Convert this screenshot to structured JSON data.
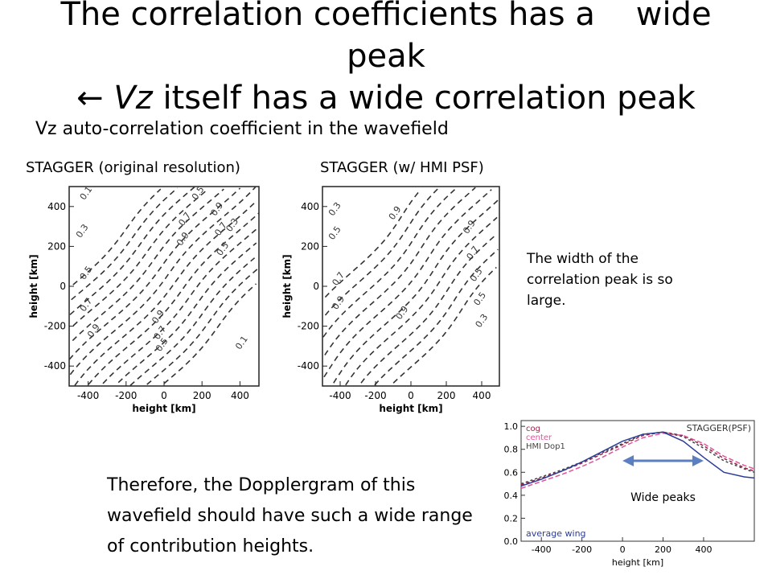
{
  "slide": {
    "title_line1": "The correlation coefficients has a    wide",
    "title_line2": "peak",
    "title_arrow": "←",
    "title_line3_italic": "Vz",
    "title_line3_rest": "itself has a wide correlation peak",
    "subtitle": "Vz auto-correlation coefficient in the wavefield",
    "note": "The width of the correlation peak is so large.",
    "conclusion": "Therefore, the Dopplergram of this wavefield should have such a wide range of contribution heights."
  },
  "chart_data": [
    {
      "type": "contour",
      "panel_label": "STAGGER (original resolution)",
      "xlabel": "height [km]",
      "ylabel": "height [km]",
      "xlim": [
        -500,
        500
      ],
      "ylim": [
        -500,
        500
      ],
      "xticks": [
        -400,
        -200,
        0,
        200,
        400
      ],
      "yticks": [
        -400,
        -200,
        0,
        200,
        400
      ],
      "contour_labels": [
        "0.1",
        "0.3",
        "0.5",
        "0.7",
        "0.9",
        "0.9",
        "0.7",
        "0.5",
        "0.3",
        "0.1",
        "0.5",
        "0.7",
        "0.9",
        "0.9",
        "0.7",
        "0.5"
      ]
    },
    {
      "type": "contour",
      "panel_label": "STAGGER (w/ HMI PSF)",
      "xlabel": "height [km]",
      "ylabel": "height [km]",
      "xlim": [
        -500,
        500
      ],
      "ylim": [
        -500,
        500
      ],
      "xticks": [
        -400,
        -200,
        0,
        200,
        400
      ],
      "yticks": [
        -400,
        -200,
        0,
        200,
        400
      ],
      "contour_labels": [
        "0.3",
        "0.5",
        "0.9",
        "0.9",
        "0.7",
        "0.5",
        "0.7",
        "0.9",
        "0.9",
        "0.5",
        "0.3"
      ]
    },
    {
      "type": "line",
      "xlabel": "height",
      "xunit": "[km]",
      "xlim": [
        -500,
        650
      ],
      "ylim": [
        0.0,
        1.05
      ],
      "xticks": [
        -400,
        -200,
        0,
        200,
        400
      ],
      "yticks": [
        0.0,
        0.2,
        0.4,
        0.6,
        0.8,
        1.0
      ],
      "legend": [
        "cog",
        "center",
        "HMI Dop1"
      ],
      "corner_label": "STAGGER(PSF)",
      "bottom_label": "average wing",
      "annotation": "Wide peaks",
      "x": [
        -500,
        -400,
        -300,
        -200,
        -100,
        0,
        100,
        200,
        300,
        400,
        500,
        600,
        650
      ],
      "series": [
        {
          "name": "cog",
          "color": "#a0224a",
          "dash": "4,3",
          "values": [
            0.49,
            0.55,
            0.61,
            0.68,
            0.76,
            0.84,
            0.92,
            0.95,
            0.92,
            0.83,
            0.72,
            0.64,
            0.61
          ]
        },
        {
          "name": "center",
          "color": "#e0559a",
          "dash": "6,3",
          "values": [
            0.46,
            0.52,
            0.58,
            0.65,
            0.73,
            0.82,
            0.9,
            0.94,
            0.92,
            0.85,
            0.74,
            0.66,
            0.63
          ]
        },
        {
          "name": "HMI Dop1",
          "color": "#444444",
          "dash": "3,3",
          "values": [
            0.5,
            0.56,
            0.62,
            0.69,
            0.77,
            0.85,
            0.93,
            0.95,
            0.91,
            0.81,
            0.7,
            0.63,
            0.6
          ]
        },
        {
          "name": "",
          "color": "#2c3d99",
          "dash": "",
          "values": [
            0.48,
            0.54,
            0.61,
            0.69,
            0.78,
            0.87,
            0.93,
            0.95,
            0.87,
            0.73,
            0.6,
            0.56,
            0.55
          ]
        }
      ]
    }
  ]
}
